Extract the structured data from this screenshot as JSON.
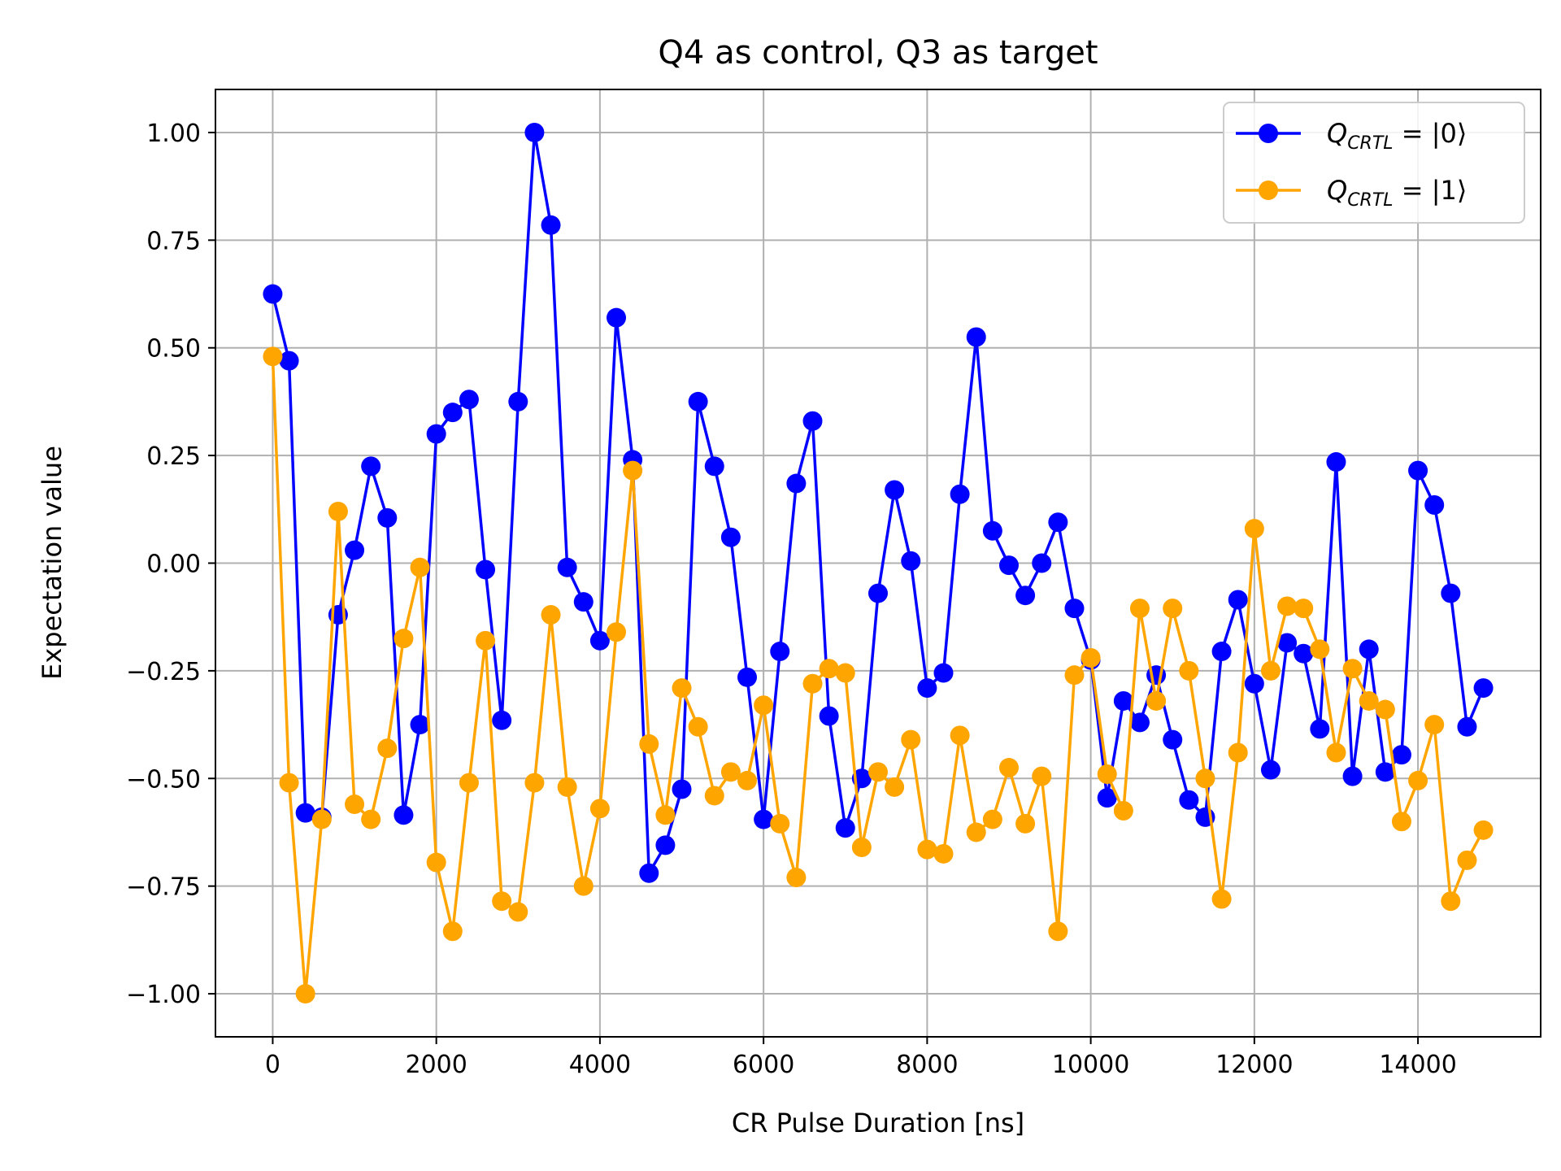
{
  "chart_data": {
    "type": "line",
    "title": "Q4 as control, Q3 as target",
    "xlabel": "CR Pulse Duration [ns]",
    "ylabel": "Expectation value",
    "xlim": [
      -700,
      15500
    ],
    "ylim": [
      -1.1,
      1.1
    ],
    "xticks": [
      0,
      2000,
      4000,
      6000,
      8000,
      10000,
      12000,
      14000
    ],
    "xtick_labels": [
      "0",
      "2000",
      "4000",
      "6000",
      "8000",
      "10000",
      "12000",
      "14000"
    ],
    "yticks": [
      1.0,
      0.75,
      0.5,
      0.25,
      0.0,
      -0.25,
      -0.5,
      -0.75,
      -1.0
    ],
    "ytick_labels": [
      "1.00",
      "0.75",
      "0.50",
      "0.25",
      "0.00",
      "−0.25",
      "−0.50",
      "−0.75",
      "−1.00"
    ],
    "grid": true,
    "legend_position": "top-right",
    "x": [
      0,
      200,
      400,
      600,
      800,
      1000,
      1200,
      1400,
      1600,
      1800,
      2000,
      2200,
      2400,
      2600,
      2800,
      3000,
      3200,
      3400,
      3600,
      3800,
      4000,
      4200,
      4400,
      4600,
      4800,
      5000,
      5200,
      5400,
      5600,
      5800,
      6000,
      6200,
      6400,
      6600,
      6800,
      7000,
      7200,
      7400,
      7600,
      7800,
      8000,
      8200,
      8400,
      8600,
      8800,
      9000,
      9200,
      9400,
      9600,
      9800,
      10000,
      10200,
      10400,
      10600,
      10800,
      11000,
      11200,
      11400,
      11600,
      11800,
      12000,
      12200,
      12400,
      12600,
      12800,
      13000,
      13200,
      13400,
      13600,
      13800,
      14000,
      14200,
      14400,
      14600,
      14800
    ],
    "series": [
      {
        "name": "Q_CRTL = |0⟩",
        "legend_main": "Q",
        "legend_sub": "CRTL",
        "legend_rest": " = |0⟩",
        "color": "#0000ff",
        "values": [
          0.625,
          0.47,
          -0.58,
          -0.59,
          -0.12,
          0.03,
          0.225,
          0.105,
          -0.585,
          -0.375,
          0.3,
          0.35,
          0.38,
          -0.015,
          -0.365,
          0.375,
          1.0,
          0.785,
          -0.01,
          -0.09,
          -0.18,
          0.57,
          0.24,
          -0.72,
          -0.655,
          -0.525,
          0.375,
          0.225,
          0.06,
          -0.265,
          -0.595,
          -0.205,
          0.185,
          0.33,
          -0.355,
          -0.615,
          -0.5,
          -0.07,
          0.17,
          0.005,
          -0.29,
          -0.255,
          0.16,
          0.525,
          0.075,
          -0.005,
          -0.075,
          0.0,
          0.095,
          -0.105,
          -0.225,
          -0.545,
          -0.32,
          -0.37,
          -0.26,
          -0.41,
          -0.55,
          -0.59,
          -0.205,
          -0.085,
          -0.28,
          -0.48,
          -0.185,
          -0.21,
          -0.385,
          0.235,
          -0.495,
          -0.2,
          -0.485,
          -0.445,
          0.215,
          0.135,
          -0.07,
          -0.38,
          -0.29
        ]
      },
      {
        "name": "Q_CRTL = |1⟩",
        "legend_main": "Q",
        "legend_sub": "CRTL",
        "legend_rest": " = |1⟩",
        "color": "#ffa500",
        "values": [
          0.48,
          -0.51,
          -1.0,
          -0.595,
          0.12,
          -0.56,
          -0.595,
          -0.43,
          -0.175,
          -0.01,
          -0.695,
          -0.855,
          -0.51,
          -0.18,
          -0.785,
          -0.81,
          -0.51,
          -0.12,
          -0.52,
          -0.75,
          -0.57,
          -0.16,
          0.215,
          -0.42,
          -0.585,
          -0.29,
          -0.38,
          -0.54,
          -0.485,
          -0.505,
          -0.33,
          -0.605,
          -0.73,
          -0.28,
          -0.245,
          -0.255,
          -0.66,
          -0.485,
          -0.52,
          -0.41,
          -0.665,
          -0.675,
          -0.4,
          -0.625,
          -0.595,
          -0.475,
          -0.605,
          -0.495,
          -0.855,
          -0.26,
          -0.22,
          -0.49,
          -0.575,
          -0.105,
          -0.32,
          -0.105,
          -0.25,
          -0.5,
          -0.78,
          -0.44,
          0.08,
          -0.25,
          -0.1,
          -0.105,
          -0.2,
          -0.44,
          -0.245,
          -0.32,
          -0.34,
          -0.6,
          -0.505,
          -0.375,
          -0.785,
          -0.69,
          -0.62
        ]
      }
    ]
  }
}
